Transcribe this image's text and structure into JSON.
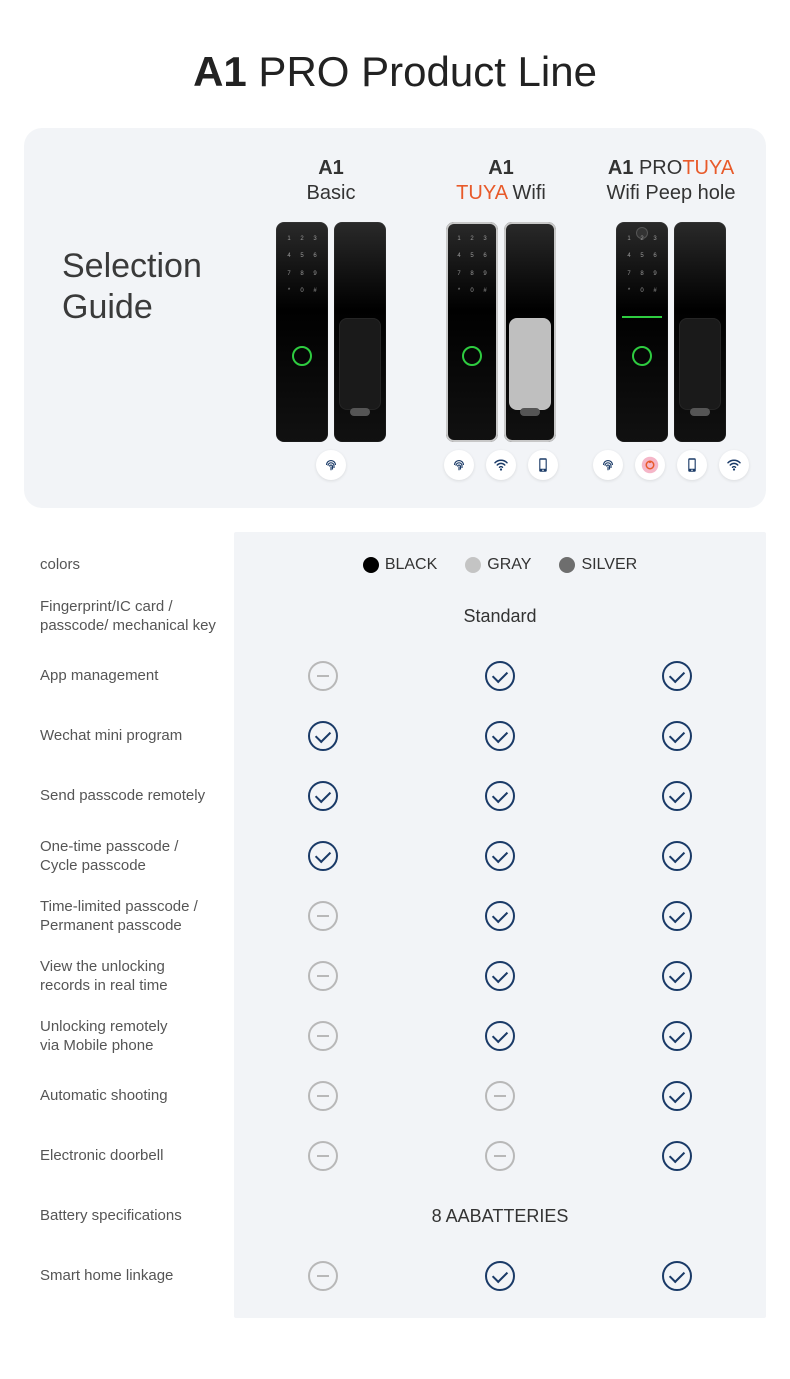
{
  "title": {
    "bold": "A1",
    "rest": " PRO Product Line"
  },
  "selection_label": "Selection\nGuide",
  "accent_color": "#e85a2a",
  "products": [
    {
      "name_bold": "A1",
      "name_accent": "",
      "subtitle_pre": "",
      "subtitle_accent": "",
      "subtitle_post": "Basic",
      "icons": [
        "fingerprint"
      ],
      "silver_edge": false,
      "has_cam": false,
      "has_greenbar": false
    },
    {
      "name_bold": "A1",
      "name_accent": "",
      "subtitle_pre": "",
      "subtitle_accent": "TUYA",
      "subtitle_post": " Wifi",
      "icons": [
        "fingerprint",
        "wifi",
        "phone"
      ],
      "silver_edge": true,
      "has_cam": false,
      "has_greenbar": false
    },
    {
      "name_bold": "A1",
      "name_accent": " PRO",
      "subtitle_pre": "",
      "subtitle_accent": "TUYA",
      "subtitle_post": "",
      "subtitle2": "Wifi Peep hole",
      "icons": [
        "fingerprint",
        "peephole",
        "phone",
        "wifi"
      ],
      "silver_edge": false,
      "has_cam": true,
      "has_greenbar": true
    }
  ],
  "colors_label": "colors",
  "color_options": [
    {
      "label": "BLACK",
      "hex": "#000000"
    },
    {
      "label": "GRAY",
      "hex": "#c4c4c4"
    },
    {
      "label": "SILVER",
      "hex": "#6e6e6e"
    }
  ],
  "feature_rows": [
    {
      "label": "Fingerprint/IC card /\npasscode/ mechanical key",
      "type": "text",
      "value": "Standard"
    },
    {
      "label": "App management",
      "type": "cells",
      "cells": [
        "no",
        "yes",
        "yes"
      ]
    },
    {
      "label": "Wechat mini program",
      "type": "cells",
      "cells": [
        "yes",
        "yes",
        "yes"
      ]
    },
    {
      "label": "Send passcode remotely",
      "type": "cells",
      "cells": [
        "yes",
        "yes",
        "yes"
      ]
    },
    {
      "label": "One-time passcode /\nCycle passcode",
      "type": "cells",
      "cells": [
        "yes",
        "yes",
        "yes"
      ]
    },
    {
      "label": "Time-limited passcode /\nPermanent passcode",
      "type": "cells",
      "cells": [
        "no",
        "yes",
        "yes"
      ]
    },
    {
      "label": "View the unlocking\nrecords in real time",
      "type": "cells",
      "cells": [
        "no",
        "yes",
        "yes"
      ]
    },
    {
      "label": "Unlocking remotely\nvia Mobile phone",
      "type": "cells",
      "cells": [
        "no",
        "yes",
        "yes"
      ]
    },
    {
      "label": "Automatic shooting",
      "type": "cells",
      "cells": [
        "no",
        "no",
        "yes"
      ]
    },
    {
      "label": "Electronic doorbell",
      "type": "cells",
      "cells": [
        "no",
        "no",
        "yes"
      ]
    },
    {
      "label": "Battery specifications",
      "type": "text",
      "value": "8  AABATTERIES"
    },
    {
      "label": "Smart home linkage",
      "type": "cells",
      "cells": [
        "no",
        "yes",
        "yes"
      ]
    }
  ],
  "icon_colors": {
    "fingerprint": "#1a3a67",
    "wifi": "#1a3a67",
    "phone": "#1a3a67",
    "peephole_bg": "#f5b6c8",
    "peephole_fg": "#e85a2a"
  }
}
